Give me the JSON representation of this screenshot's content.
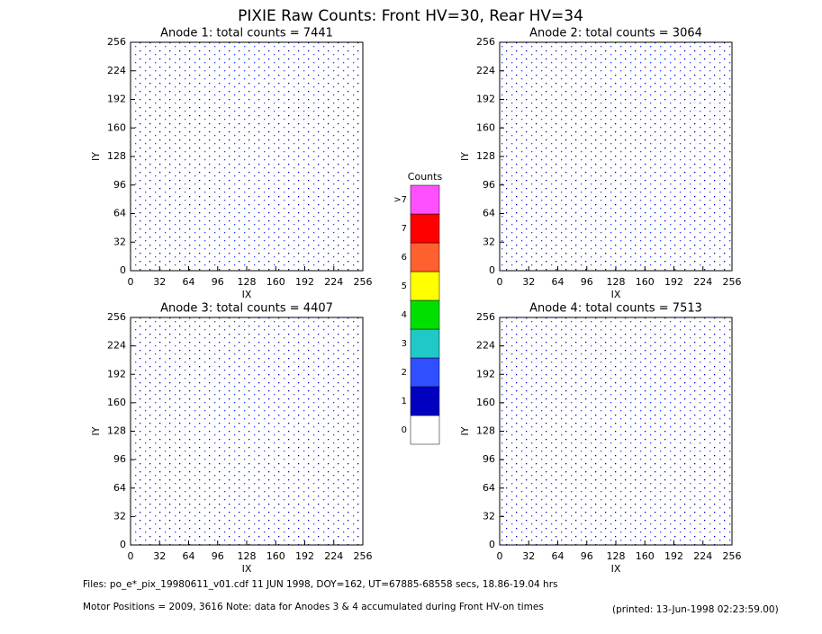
{
  "title": "PIXIE Raw Counts:  Front HV=30, Rear HV=34",
  "chart_data": [
    {
      "type": "heatmap",
      "title": "Anode 1: total counts = 7441",
      "xlabel": "IX",
      "ylabel": "IY",
      "xlim": [
        0,
        256
      ],
      "xticks": [
        0,
        32,
        64,
        96,
        128,
        160,
        192,
        224,
        256
      ],
      "ylim": [
        0,
        256
      ],
      "yticks": [
        0,
        32,
        64,
        96,
        128,
        160,
        192,
        224,
        256
      ]
    },
    {
      "type": "heatmap",
      "title": "Anode 2: total counts = 3064",
      "xlabel": "IX",
      "ylabel": "IY",
      "xlim": [
        0,
        256
      ],
      "xticks": [
        0,
        32,
        64,
        96,
        128,
        160,
        192,
        224,
        256
      ],
      "ylim": [
        0,
        256
      ],
      "yticks": [
        0,
        32,
        64,
        96,
        128,
        160,
        192,
        224,
        256
      ]
    },
    {
      "type": "heatmap",
      "title": "Anode 3: total counts = 4407",
      "xlabel": "IX",
      "ylabel": "IY",
      "xlim": [
        0,
        256
      ],
      "xticks": [
        0,
        32,
        64,
        96,
        128,
        160,
        192,
        224,
        256
      ],
      "ylim": [
        0,
        256
      ],
      "yticks": [
        0,
        32,
        64,
        96,
        128,
        160,
        192,
        224,
        256
      ]
    },
    {
      "type": "heatmap",
      "title": "Anode 4: total counts = 7513",
      "xlabel": "IX",
      "ylabel": "IY",
      "xlim": [
        0,
        256
      ],
      "xticks": [
        0,
        32,
        64,
        96,
        128,
        160,
        192,
        224,
        256
      ],
      "ylim": [
        0,
        256
      ],
      "yticks": [
        0,
        32,
        64,
        96,
        128,
        160,
        192,
        224,
        256
      ]
    }
  ],
  "colorbar": {
    "title": "Counts",
    "labels": [
      "0",
      "1",
      "2",
      "3",
      "4",
      "5",
      "6",
      "7",
      ">7"
    ],
    "colors": [
      "#ffffff",
      "#0000c0",
      "#3050ff",
      "#20c8c8",
      "#00e000",
      "#ffff00",
      "#ff6030",
      "#ff0000",
      "#ff50ff"
    ]
  },
  "footer": {
    "files": "Files: po_e*_pix_19980611_v01.cdf    11 JUN 1998, DOY=162, UT=67885-68558 secs, 18.86-19.04 hrs",
    "motor": "Motor Positions = 2009, 3616   Note: data for Anodes 3 & 4 accumulated during Front HV-on times",
    "printed": "(printed: 13-Jun-1998 02:23:59.00)"
  }
}
